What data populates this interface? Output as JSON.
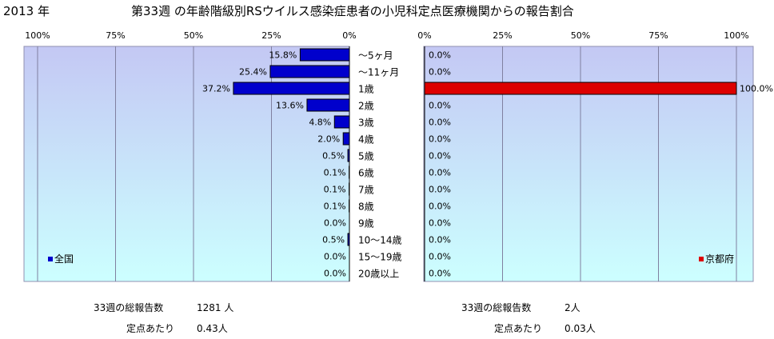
{
  "header": {
    "year": "2013 年",
    "title": "第33週 の年齢階級別RSウイルス感染症患者の小児科定点医療機関からの報告割合"
  },
  "colors": {
    "national_bar": "#0000cc",
    "kyoto_bar": "#dd0000",
    "plot_top": "#c4c8f4",
    "plot_bottom": "#ccffff",
    "gridline": "#8080a0",
    "axis": "#000000"
  },
  "chart_data": [
    {
      "type": "bar",
      "orientation": "horizontal",
      "direction": "right-to-left",
      "legend": "全国",
      "legend_position": "bottom-left",
      "xlim": [
        0,
        100
      ],
      "x_ticks": [
        "100%",
        "75%",
        "50%",
        "25%",
        "0%"
      ],
      "grid": true,
      "categories": [
        "～5ヶ月",
        "～11ヶ月",
        "1歳",
        "2歳",
        "3歳",
        "4歳",
        "5歳",
        "6歳",
        "7歳",
        "8歳",
        "9歳",
        "10～14歳",
        "15～19歳",
        "20歳以上"
      ],
      "values": [
        15.8,
        25.4,
        37.2,
        13.6,
        4.8,
        2.0,
        0.5,
        0.1,
        0.1,
        0.1,
        0.0,
        0.5,
        0.0,
        0.0
      ],
      "labels": [
        "15.8%",
        "25.4%",
        "37.2%",
        "13.6%",
        "4.8%",
        "2.0%",
        "0.5%",
        "0.1%",
        "0.1%",
        "0.1%",
        "0.0%",
        "0.5%",
        "0.0%",
        "0.0%"
      ]
    },
    {
      "type": "bar",
      "orientation": "horizontal",
      "direction": "left-to-right",
      "legend": "京都府",
      "legend_position": "bottom-right",
      "xlim": [
        0,
        100
      ],
      "x_ticks": [
        "0%",
        "25%",
        "50%",
        "75%",
        "100%"
      ],
      "grid": true,
      "categories": [
        "～5ヶ月",
        "～11ヶ月",
        "1歳",
        "2歳",
        "3歳",
        "4歳",
        "5歳",
        "6歳",
        "7歳",
        "8歳",
        "9歳",
        "10～14歳",
        "15～19歳",
        "20歳以上"
      ],
      "values": [
        0.0,
        0.0,
        100.0,
        0.0,
        0.0,
        0.0,
        0.0,
        0.0,
        0.0,
        0.0,
        0.0,
        0.0,
        0.0,
        0.0
      ],
      "labels": [
        "0.0%",
        "0.0%",
        "100.0%",
        "0.0%",
        "0.0%",
        "0.0%",
        "0.0%",
        "0.0%",
        "0.0%",
        "0.0%",
        "0.0%",
        "0.0%",
        "0.0%",
        "0.0%"
      ]
    }
  ],
  "summary": {
    "national": {
      "total_label": "33週の総報告数",
      "total_value": "1281 人",
      "per_site_label": "定点あたり",
      "per_site_value": "0.43人"
    },
    "kyoto": {
      "total_label": "33週の総報告数",
      "total_value": "2人",
      "per_site_label": "定点あたり",
      "per_site_value": "0.03人"
    }
  }
}
